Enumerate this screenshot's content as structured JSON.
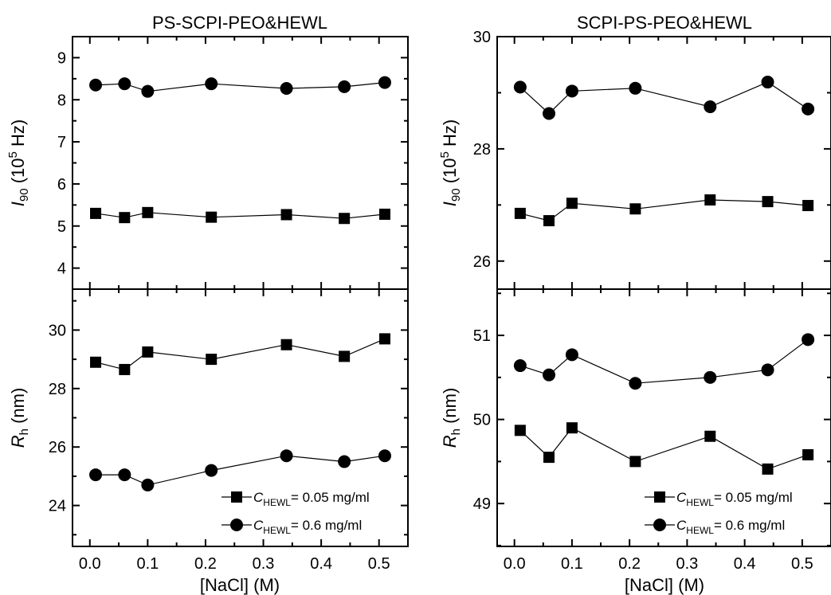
{
  "figure": {
    "titles": [
      "PS-SCPI-PEO&HEWL",
      "SCPI-PS-PEO&HEWL"
    ],
    "x_axis_label": "[NaCl] (M)",
    "y_label_i90": {
      "symbol": "I",
      "sub": "90",
      "pre": " (10",
      "sup": "5",
      "post": " Hz)"
    },
    "y_label_rh": {
      "symbol": "R",
      "sub": "h",
      "post": " (nm)"
    },
    "legend": [
      {
        "marker": "square",
        "symbol": "C",
        "sub": "HEWL",
        "text": "= 0.05 mg/ml"
      },
      {
        "marker": "circle",
        "symbol": "C",
        "sub": "HEWL",
        "text": "= 0.6 mg/ml"
      }
    ],
    "x_ticks": [
      "0.0",
      "0.1",
      "0.2",
      "0.3",
      "0.4",
      "0.5"
    ]
  },
  "chart_data": [
    {
      "id": "left-top",
      "type": "line",
      "title": "PS-SCPI-PEO&HEWL",
      "xlabel": "",
      "ylabel": "I90 (10^5 Hz)",
      "xlim": [
        -0.03,
        0.55
      ],
      "ylim": [
        3.5,
        9.5
      ],
      "yticks": [
        4,
        5,
        6,
        7,
        8,
        9
      ],
      "x": [
        0.01,
        0.06,
        0.1,
        0.21,
        0.34,
        0.44,
        0.51
      ],
      "series": [
        {
          "name": "C_HEWL= 0.05 mg/ml",
          "marker": "square",
          "values": [
            5.3,
            5.2,
            5.32,
            5.21,
            5.27,
            5.18,
            5.28
          ]
        },
        {
          "name": "C_HEWL= 0.6 mg/ml",
          "marker": "circle",
          "values": [
            8.35,
            8.38,
            8.2,
            8.38,
            8.27,
            8.31,
            8.41
          ]
        }
      ]
    },
    {
      "id": "left-bottom",
      "type": "line",
      "xlabel": "[NaCl] (M)",
      "ylabel": "Rh (nm)",
      "xlim": [
        -0.03,
        0.55
      ],
      "ylim": [
        22.6,
        31.4
      ],
      "yticks": [
        24,
        26,
        28,
        30
      ],
      "x": [
        0.01,
        0.06,
        0.1,
        0.21,
        0.34,
        0.44,
        0.51
      ],
      "series": [
        {
          "name": "C_HEWL= 0.05 mg/ml",
          "marker": "square",
          "values": [
            28.9,
            28.65,
            29.25,
            29.0,
            29.5,
            29.1,
            29.7
          ]
        },
        {
          "name": "C_HEWL= 0.6 mg/ml",
          "marker": "circle",
          "values": [
            25.05,
            25.05,
            24.7,
            25.2,
            25.7,
            25.5,
            25.7
          ]
        }
      ]
    },
    {
      "id": "right-top",
      "type": "line",
      "title": "SCPI-PS-PEO&HEWL",
      "xlabel": "",
      "ylabel": "I90 (10^5 Hz)",
      "xlim": [
        -0.03,
        0.55
      ],
      "ylim": [
        25.5,
        30.0
      ],
      "yticks": [
        26,
        28,
        30
      ],
      "x": [
        0.01,
        0.06,
        0.1,
        0.21,
        0.34,
        0.44,
        0.51
      ],
      "series": [
        {
          "name": "C_HEWL= 0.05 mg/ml",
          "marker": "square",
          "values": [
            26.85,
            26.72,
            27.03,
            26.93,
            27.09,
            27.06,
            26.99
          ]
        },
        {
          "name": "C_HEWL= 0.6 mg/ml",
          "marker": "circle",
          "values": [
            29.1,
            28.63,
            29.03,
            29.08,
            28.75,
            29.19,
            28.71
          ]
        }
      ]
    },
    {
      "id": "right-bottom",
      "type": "line",
      "xlabel": "[NaCl] (M)",
      "ylabel": "Rh (nm)",
      "xlim": [
        -0.03,
        0.55
      ],
      "ylim": [
        48.49,
        51.55
      ],
      "yticks": [
        49,
        50,
        51
      ],
      "x": [
        0.01,
        0.06,
        0.1,
        0.21,
        0.34,
        0.44,
        0.51
      ],
      "series": [
        {
          "name": "C_HEWL= 0.05 mg/ml",
          "marker": "square",
          "values": [
            49.87,
            49.55,
            49.9,
            49.5,
            49.8,
            49.41,
            49.58
          ]
        },
        {
          "name": "C_HEWL= 0.6 mg/ml",
          "marker": "circle",
          "values": [
            50.64,
            50.53,
            50.77,
            50.43,
            50.5,
            50.59,
            50.95
          ]
        }
      ]
    }
  ]
}
